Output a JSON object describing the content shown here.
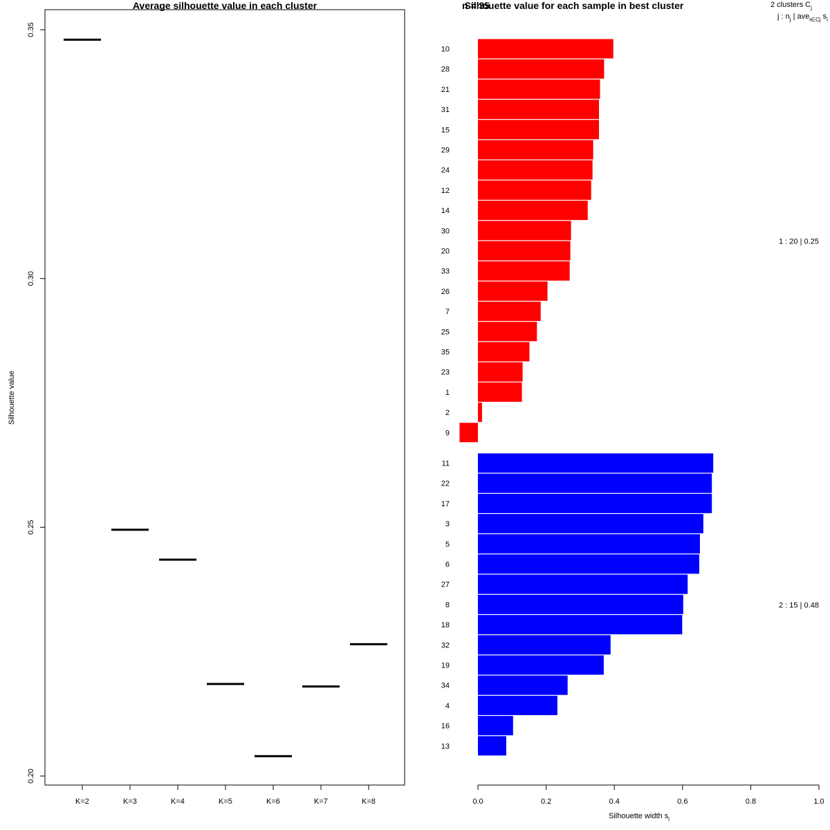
{
  "chart_data": [
    {
      "type": "line",
      "title": "Average silhouette value in each cluster",
      "xlabel": "",
      "ylabel": "Silhouette value",
      "categories": [
        "K=2",
        "K=3",
        "K=4",
        "K=5",
        "K=6",
        "K=7",
        "K=8"
      ],
      "values": [
        0.348,
        0.2495,
        0.2435,
        0.2185,
        0.204,
        0.218,
        0.2265
      ],
      "ylim": [
        0.2,
        0.355
      ],
      "yticks": [
        "0.20",
        "0.25",
        "0.30",
        "0.35"
      ],
      "grid": false
    },
    {
      "type": "bar",
      "orientation": "horizontal",
      "title": "Silhouette value for each sample in best cluster",
      "xlabel": "Silhouette width s",
      "xlabel_subscript": "i",
      "xlim": [
        0.0,
        1.0
      ],
      "xticks": [
        "0.0",
        "0.2",
        "0.4",
        "0.6",
        "0.8",
        "1.0"
      ],
      "clusters": [
        {
          "id": 1,
          "n": 20,
          "avg": "0.25",
          "color": "#ff0000",
          "labels": [
            "10",
            "28",
            "21",
            "31",
            "15",
            "29",
            "24",
            "12",
            "14",
            "30",
            "20",
            "33",
            "26",
            "7",
            "25",
            "35",
            "23",
            "1",
            "2",
            "9"
          ],
          "values": [
            0.397,
            0.37,
            0.358,
            0.355,
            0.355,
            0.338,
            0.336,
            0.332,
            0.322,
            0.273,
            0.271,
            0.269,
            0.204,
            0.184,
            0.173,
            0.151,
            0.131,
            0.129,
            0.012,
            -0.054
          ],
          "summary": "1 :  20  |  0.25"
        },
        {
          "id": 2,
          "n": 15,
          "avg": "0.48",
          "color": "#0000ff",
          "labels": [
            "11",
            "22",
            "17",
            "3",
            "5",
            "6",
            "27",
            "8",
            "18",
            "32",
            "19",
            "34",
            "4",
            "16",
            "13"
          ],
          "values": [
            0.69,
            0.686,
            0.686,
            0.661,
            0.651,
            0.649,
            0.615,
            0.602,
            0.599,
            0.389,
            0.369,
            0.263,
            0.233,
            0.103,
            0.083
          ],
          "summary": "2 :  15  |  0.48"
        }
      ],
      "legend_header_line1": "2  clusters  C",
      "legend_header_line1_sub": "j",
      "legend_header_line2": "j :  n",
      "legend_header_line2_sub": "j",
      "legend_header_line2_rest": " | ave",
      "legend_header_line2_sub2": "i∈Cj",
      "legend_header_line2_end": "  s",
      "legend_header_line2_end_sub": "i",
      "overlap_label": "n = 35"
    }
  ]
}
